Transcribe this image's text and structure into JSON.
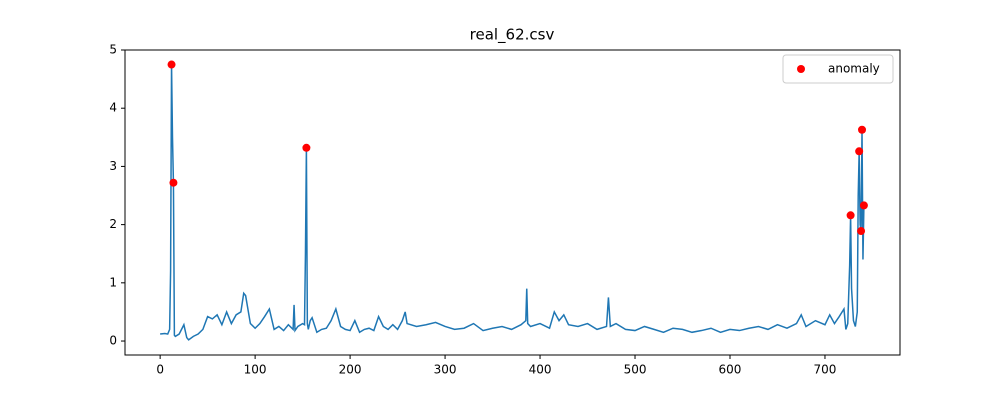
{
  "chart_data": {
    "type": "line",
    "title": "real_62.csv",
    "xlim": [
      -37,
      779
    ],
    "xticks": [
      0,
      100,
      200,
      300,
      400,
      500,
      600,
      700
    ],
    "ylim": [
      -0.24,
      5.0
    ],
    "yticks": [
      0,
      1,
      2,
      3,
      4,
      5
    ],
    "legend": "upper right",
    "series": [
      {
        "type": "line",
        "color": "#1f77b4",
        "x": [
          0,
          5,
          8,
          10,
          11,
          12,
          13,
          14,
          15,
          16,
          20,
          25,
          28,
          30,
          35,
          40,
          45,
          50,
          55,
          60,
          65,
          70,
          75,
          80,
          85,
          88,
          90,
          95,
          100,
          105,
          110,
          115,
          120,
          125,
          130,
          135,
          140,
          141,
          142,
          145,
          150,
          152,
          153,
          154,
          155,
          156,
          158,
          160,
          165,
          170,
          175,
          180,
          185,
          190,
          195,
          200,
          205,
          210,
          215,
          220,
          225,
          230,
          235,
          240,
          245,
          250,
          255,
          258,
          260,
          270,
          280,
          290,
          300,
          310,
          320,
          330,
          340,
          350,
          360,
          370,
          380,
          385,
          386,
          387,
          390,
          400,
          410,
          415,
          420,
          425,
          430,
          440,
          450,
          460,
          470,
          472,
          474,
          480,
          490,
          500,
          510,
          520,
          530,
          540,
          550,
          560,
          570,
          580,
          590,
          600,
          610,
          620,
          630,
          640,
          650,
          660,
          670,
          675,
          680,
          690,
          700,
          705,
          710,
          715,
          720,
          722,
          724,
          726,
          727,
          728,
          730,
          732,
          734,
          735,
          736,
          737,
          738,
          739,
          740,
          741
        ],
        "values": [
          0.12,
          0.13,
          0.12,
          0.2,
          1.2,
          4.75,
          3.5,
          2.72,
          0.1,
          0.08,
          0.12,
          0.28,
          0.06,
          0.02,
          0.08,
          0.12,
          0.2,
          0.42,
          0.38,
          0.45,
          0.28,
          0.5,
          0.3,
          0.45,
          0.5,
          0.82,
          0.78,
          0.3,
          0.22,
          0.3,
          0.42,
          0.55,
          0.2,
          0.25,
          0.18,
          0.28,
          0.2,
          0.62,
          0.18,
          0.25,
          0.3,
          0.28,
          1.5,
          3.32,
          0.3,
          0.2,
          0.35,
          0.4,
          0.15,
          0.2,
          0.22,
          0.35,
          0.55,
          0.25,
          0.2,
          0.18,
          0.35,
          0.15,
          0.2,
          0.22,
          0.18,
          0.42,
          0.25,
          0.2,
          0.28,
          0.2,
          0.35,
          0.5,
          0.3,
          0.25,
          0.28,
          0.32,
          0.25,
          0.2,
          0.22,
          0.3,
          0.18,
          0.22,
          0.25,
          0.2,
          0.28,
          0.35,
          0.9,
          0.3,
          0.25,
          0.3,
          0.22,
          0.5,
          0.35,
          0.45,
          0.28,
          0.25,
          0.3,
          0.2,
          0.25,
          0.75,
          0.25,
          0.3,
          0.2,
          0.18,
          0.25,
          0.2,
          0.15,
          0.22,
          0.2,
          0.15,
          0.18,
          0.22,
          0.15,
          0.2,
          0.18,
          0.22,
          0.25,
          0.2,
          0.28,
          0.22,
          0.3,
          0.45,
          0.25,
          0.35,
          0.28,
          0.45,
          0.3,
          0.42,
          0.55,
          0.2,
          0.3,
          1.3,
          2.16,
          0.9,
          0.35,
          0.25,
          0.5,
          2.5,
          3.26,
          2.0,
          1.89,
          3.63,
          1.4,
          2.33
        ]
      },
      {
        "type": "scatter",
        "name": "anomaly",
        "color": "red",
        "x": [
          12,
          14,
          154,
          727,
          736,
          738,
          739,
          741
        ],
        "values": [
          4.75,
          2.72,
          3.32,
          2.16,
          3.26,
          1.89,
          3.63,
          2.33
        ]
      }
    ]
  }
}
